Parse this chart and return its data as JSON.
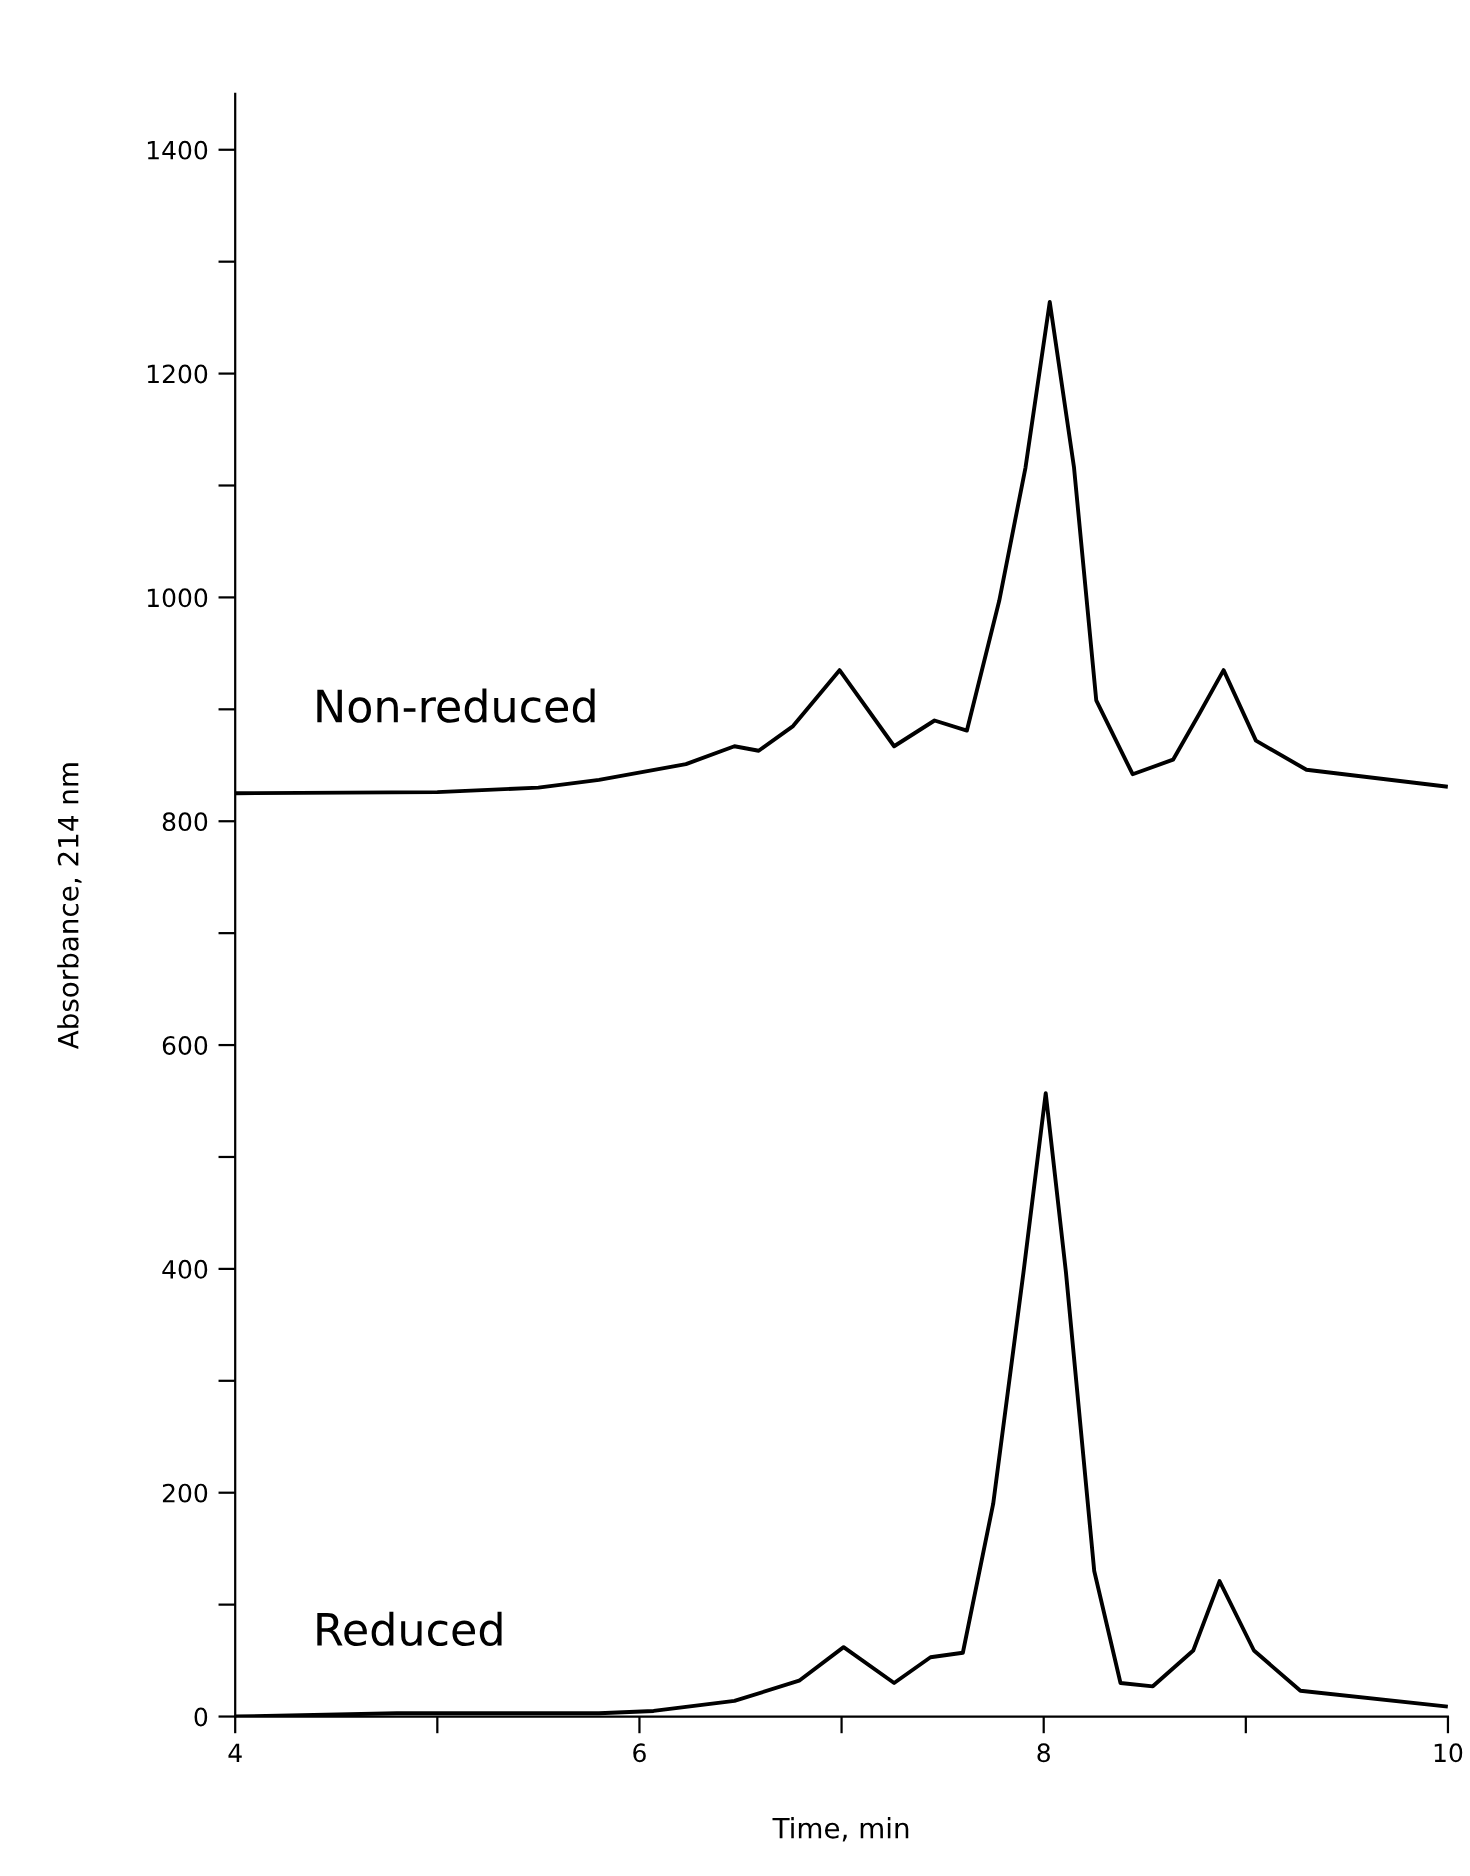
{
  "chart_data": {
    "type": "line",
    "xlabel": "Time, min",
    "ylabel": "Absorbance, 214 nm",
    "xlim": [
      4,
      10
    ],
    "ylim": [
      0,
      1450
    ],
    "xticks": [
      4,
      {
        "value": 5,
        "label": null
      },
      6,
      {
        "value": 7,
        "label": null
      },
      8,
      {
        "value": 9,
        "label": null
      },
      10
    ],
    "yticks": [
      0,
      {
        "value": 100,
        "label": null
      },
      200,
      {
        "value": 300,
        "label": null
      },
      400,
      {
        "value": 500,
        "label": null
      },
      600,
      {
        "value": 700,
        "label": null
      },
      800,
      {
        "value": 900,
        "label": null
      },
      1000,
      {
        "value": 1100,
        "label": null
      },
      1200,
      {
        "value": 1300,
        "label": null
      },
      1400
    ],
    "grid": false,
    "legend": false,
    "marker": "none",
    "line_style": "solid",
    "series": [
      {
        "name": "Non-reduced",
        "color": "#000000",
        "x": [
          4.0,
          5.0,
          5.5,
          5.8,
          6.23,
          6.47,
          6.59,
          6.76,
          6.99,
          7.26,
          7.46,
          7.62,
          7.78,
          7.91,
          8.03,
          8.15,
          8.26,
          8.44,
          8.64,
          8.77,
          8.89,
          9.05,
          9.3,
          9.99
        ],
        "values": [
          825,
          826,
          830,
          837,
          851,
          867,
          863,
          885,
          935,
          867,
          890,
          881,
          997,
          1116,
          1264,
          1116,
          908,
          842,
          855,
          896,
          935,
          872,
          846,
          831
        ]
      },
      {
        "name": "Reduced",
        "color": "#000000",
        "x": [
          4.0,
          4.8,
          5.2,
          5.8,
          6.07,
          6.47,
          6.79,
          7.01,
          7.26,
          7.44,
          7.6,
          7.75,
          7.9,
          8.01,
          8.11,
          8.25,
          8.38,
          8.54,
          8.74,
          8.87,
          9.04,
          9.27,
          9.99
        ],
        "values": [
          0,
          3,
          3,
          3,
          5,
          14,
          32,
          62,
          30,
          53,
          57,
          190,
          397,
          557,
          397,
          130,
          30,
          27,
          59,
          121,
          59,
          23,
          9
        ]
      }
    ]
  }
}
